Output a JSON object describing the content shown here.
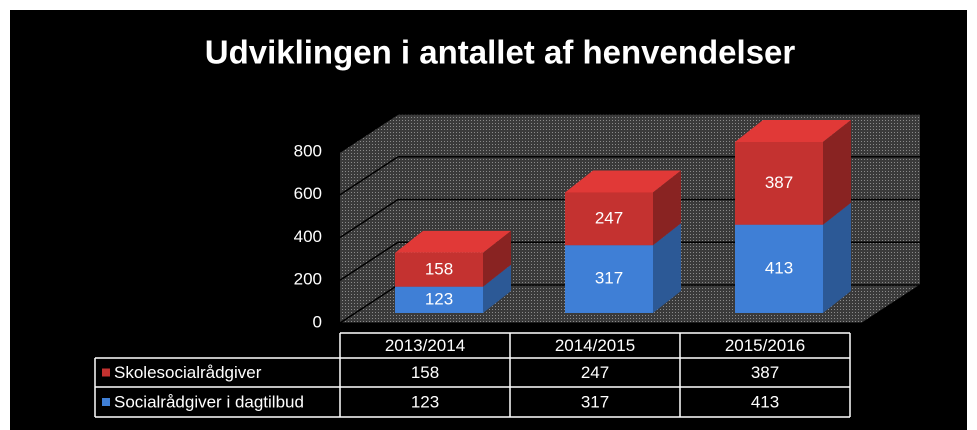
{
  "chart_data": {
    "type": "bar3d-stacked",
    "title": "Udviklingen i antallet af henvendelser",
    "categories": [
      "2013/2014",
      "2014/2015",
      "2015/2016"
    ],
    "series": [
      {
        "name": "Skolesocialrådgiver",
        "color": "#c43230",
        "values": [
          158,
          247,
          387
        ]
      },
      {
        "name": "Socialrådgiver i dagtilbud",
        "color": "#3f7fd6",
        "values": [
          123,
          317,
          413
        ]
      }
    ],
    "ylim": [
      0,
      800
    ],
    "yticks": [
      0,
      200,
      400,
      600,
      800
    ],
    "grid": true
  }
}
